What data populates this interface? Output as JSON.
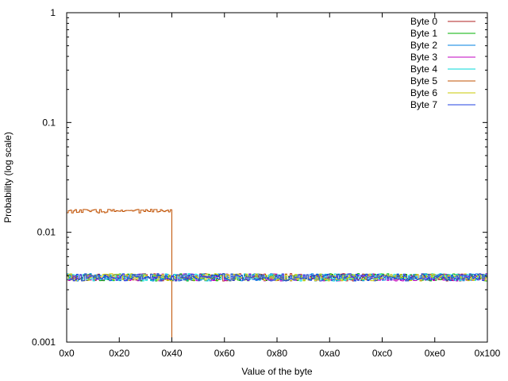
{
  "chart_data": {
    "type": "line",
    "step": true,
    "xlabel": "Value of the byte",
    "ylabel": "Probability (log scale)",
    "yscale": "log",
    "xlim": [
      0,
      256
    ],
    "ylim": [
      0.001,
      1
    ],
    "x_ticks": [
      {
        "value": 0,
        "label": "0x0"
      },
      {
        "value": 32,
        "label": "0x20"
      },
      {
        "value": 64,
        "label": "0x40"
      },
      {
        "value": 96,
        "label": "0x60"
      },
      {
        "value": 128,
        "label": "0x80"
      },
      {
        "value": 160,
        "label": "0xa0"
      },
      {
        "value": 192,
        "label": "0xc0"
      },
      {
        "value": 224,
        "label": "0xe0"
      },
      {
        "value": 256,
        "label": "0x100"
      }
    ],
    "y_ticks": [
      {
        "value": 1,
        "label": "1"
      },
      {
        "value": 0.1,
        "label": "0.1"
      },
      {
        "value": 0.01,
        "label": "0.01"
      },
      {
        "value": 0.001,
        "label": "0.001"
      }
    ],
    "grid": false,
    "legend_position": "top-right",
    "series": [
      {
        "name": "Byte 0",
        "color": "#b22222",
        "range": [
          0,
          256
        ],
        "mean": 0.0039,
        "spread": 0.0003
      },
      {
        "name": "Byte 1",
        "color": "#00b000",
        "range": [
          0,
          256
        ],
        "mean": 0.0039,
        "spread": 0.0003
      },
      {
        "name": "Byte 2",
        "color": "#0080e0",
        "range": [
          0,
          256
        ],
        "mean": 0.0039,
        "spread": 0.0003
      },
      {
        "name": "Byte 3",
        "color": "#c000c0",
        "range": [
          0,
          256
        ],
        "mean": 0.0039,
        "spread": 0.0003
      },
      {
        "name": "Byte 4",
        "color": "#00d8d8",
        "range": [
          0,
          256
        ],
        "mean": 0.0039,
        "spread": 0.0003
      },
      {
        "name": "Byte 5",
        "color": "#c05000",
        "range": [
          0,
          64
        ],
        "mean": 0.0156,
        "spread": 0.0006
      },
      {
        "name": "Byte 6",
        "color": "#c8c800",
        "range": [
          0,
          256
        ],
        "mean": 0.0039,
        "spread": 0.0003
      },
      {
        "name": "Byte 7",
        "color": "#2040e0",
        "range": [
          0,
          256
        ],
        "mean": 0.0039,
        "spread": 0.0003
      }
    ]
  }
}
